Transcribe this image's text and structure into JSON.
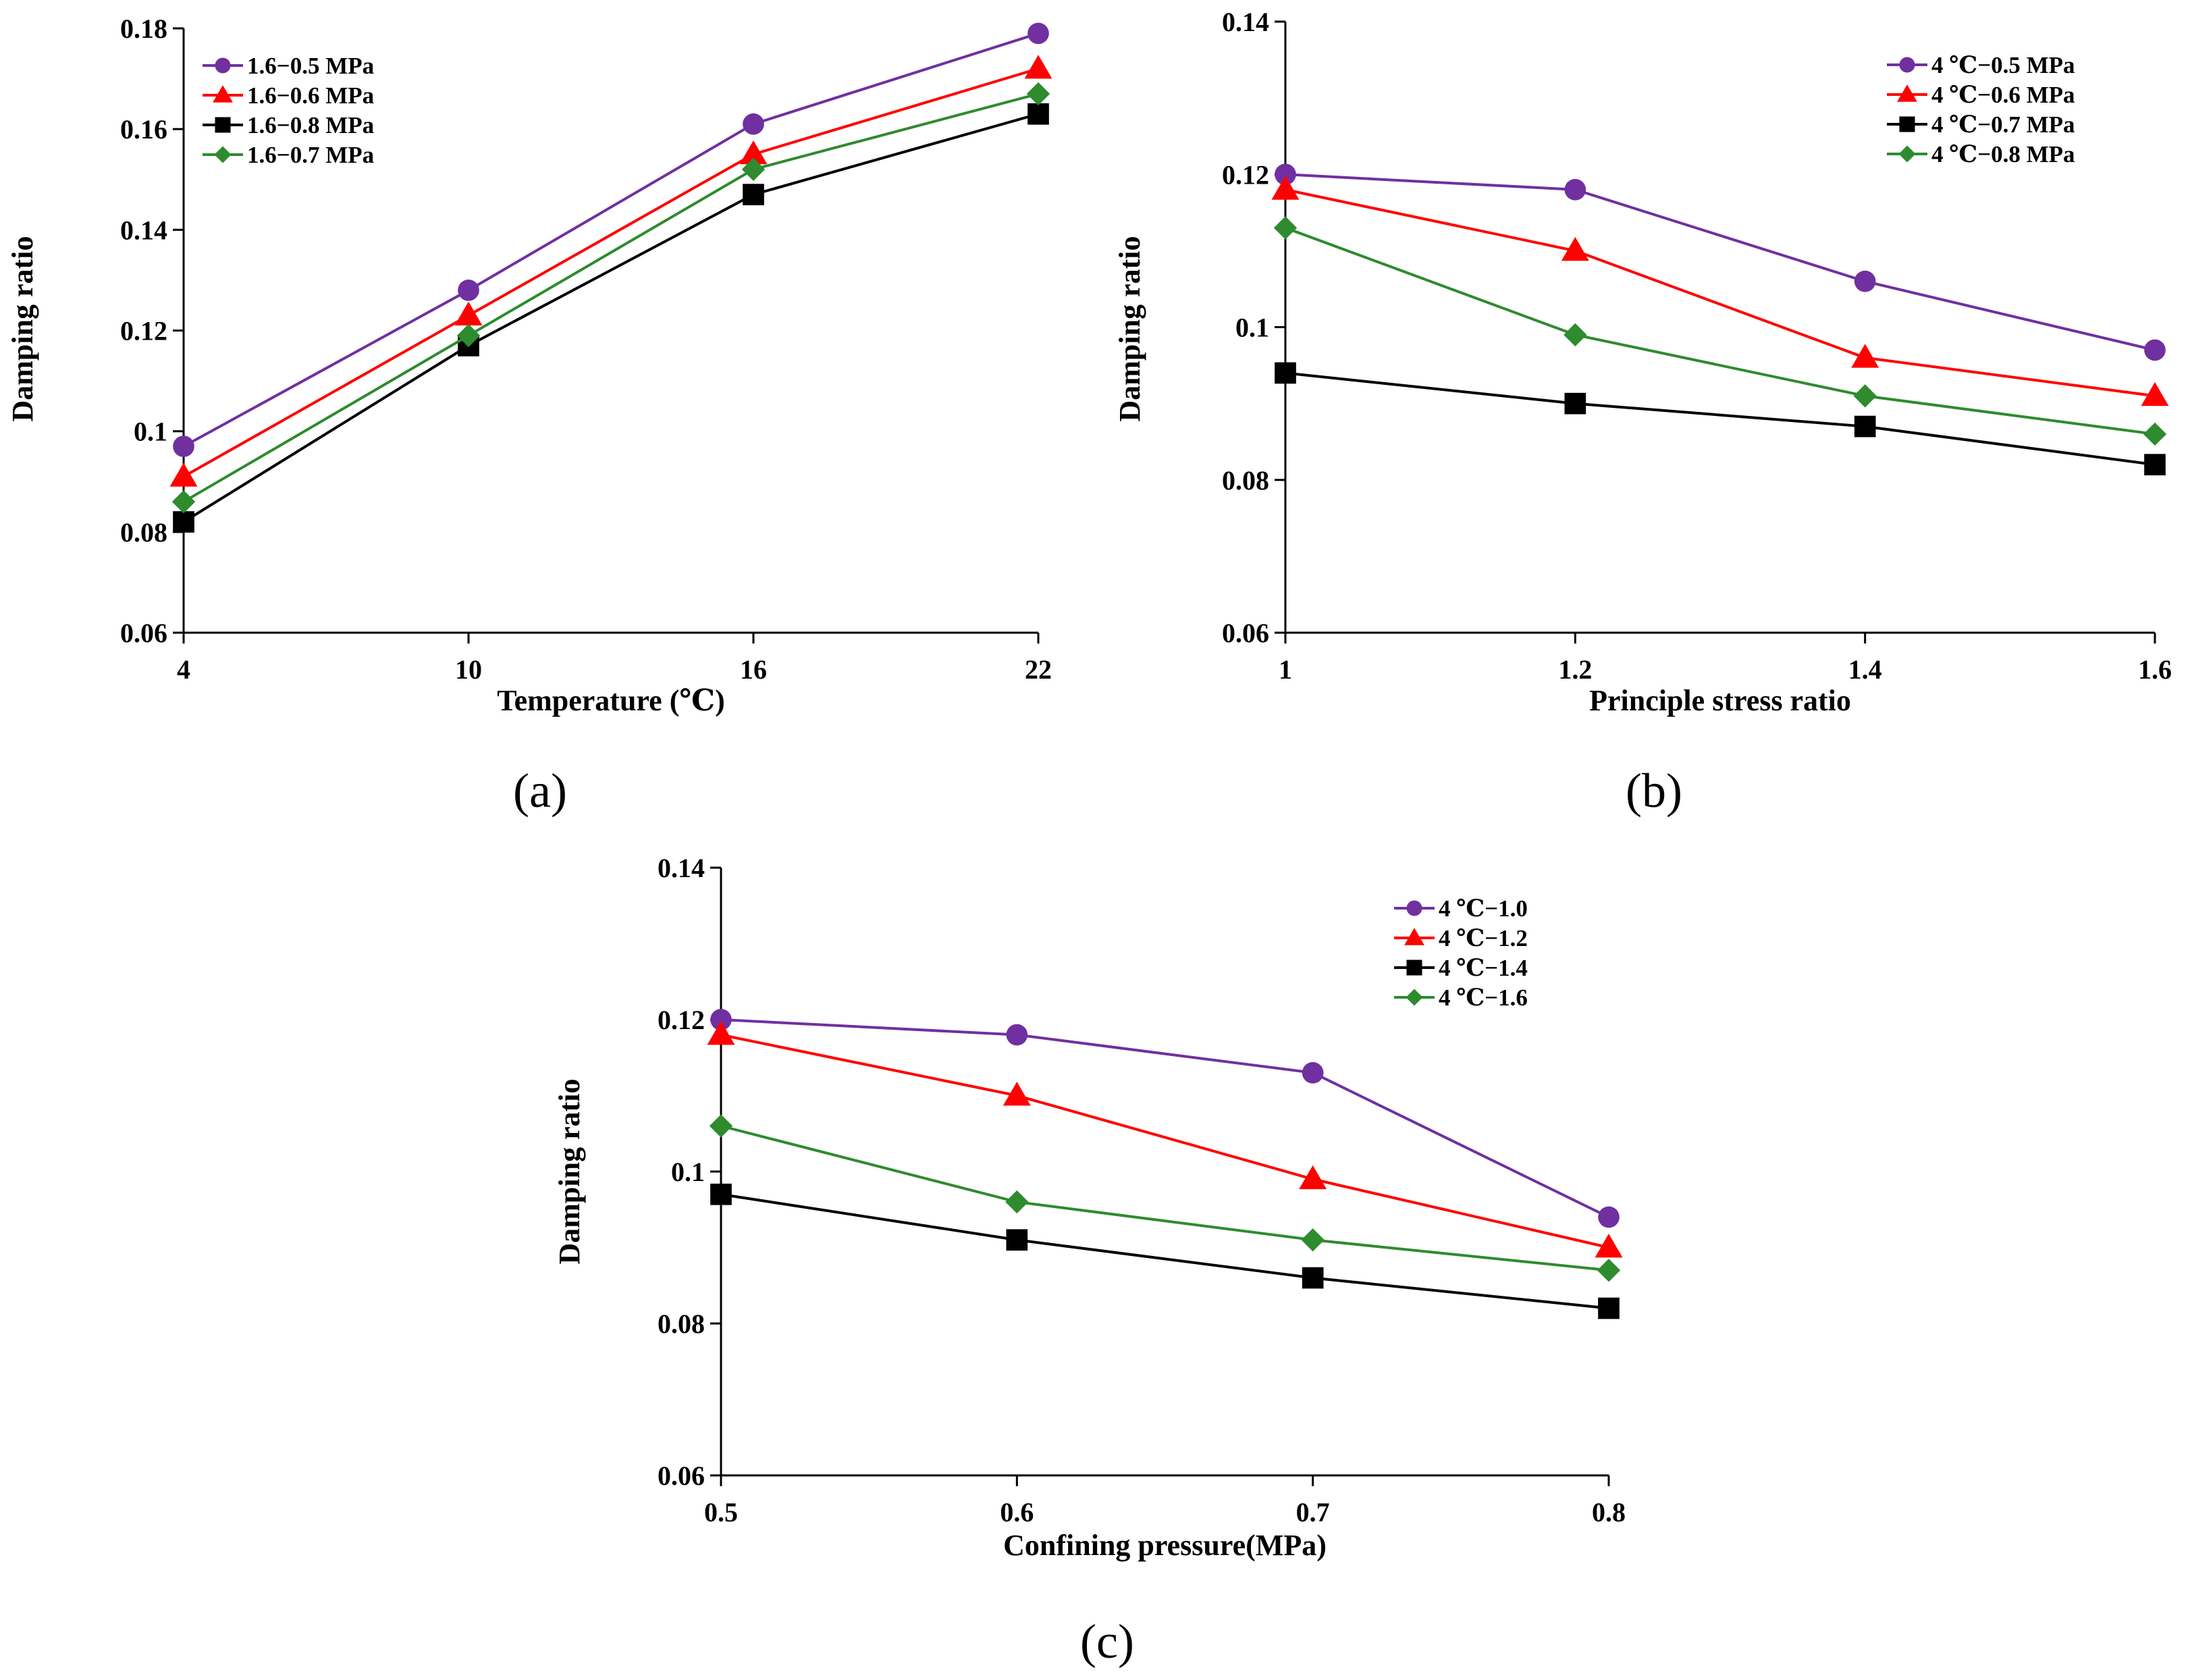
{
  "colors": {
    "series": [
      "#7030A0",
      "#FF0000",
      "#000000",
      "#2E8B2E"
    ],
    "axis": "#000000"
  },
  "chart_data": [
    {
      "type": "line",
      "panel_label": "(a)",
      "xlabel": "Temperature (℃)",
      "ylabel": "Damping ratio",
      "categories": [
        "4",
        "10",
        "16",
        "22"
      ],
      "ylim": [
        0.06,
        0.18
      ],
      "yticks": [
        "0.06",
        "0.08",
        "0.1",
        "0.12",
        "0.14",
        "0.16",
        "0.18"
      ],
      "legend_position": "top-left",
      "series": [
        {
          "name": "1.6−0.5 MPa",
          "marker": "circle",
          "values": [
            0.097,
            0.128,
            0.161,
            0.179
          ]
        },
        {
          "name": "1.6−0.6 MPa",
          "marker": "triangle",
          "values": [
            0.091,
            0.123,
            0.155,
            0.172
          ]
        },
        {
          "name": "1.6−0.8 MPa",
          "marker": "square",
          "values": [
            0.082,
            0.117,
            0.147,
            0.163
          ]
        },
        {
          "name": "1.6−0.7 MPa",
          "marker": "diamond",
          "values": [
            0.086,
            0.119,
            0.152,
            0.167
          ]
        }
      ]
    },
    {
      "type": "line",
      "panel_label": "(b)",
      "xlabel": "Principle stress ratio",
      "ylabel": "Damping ratio",
      "categories": [
        "1",
        "1.2",
        "1.4",
        "1.6"
      ],
      "ylim": [
        0.06,
        0.14
      ],
      "yticks": [
        "0.06",
        "0.08",
        "0.1",
        "0.12",
        "0.14"
      ],
      "legend_position": "top-right",
      "series": [
        {
          "name": "4 ℃−0.5 MPa",
          "marker": "circle",
          "values": [
            0.12,
            0.118,
            0.106,
            0.097
          ]
        },
        {
          "name": "4 ℃−0.6 MPa",
          "marker": "triangle",
          "values": [
            0.118,
            0.11,
            0.096,
            0.091
          ]
        },
        {
          "name": "4 ℃−0.7 MPa",
          "marker": "square",
          "values": [
            0.094,
            0.09,
            0.087,
            0.082
          ]
        },
        {
          "name": "4 ℃−0.8 MPa",
          "marker": "diamond",
          "values": [
            0.113,
            0.099,
            0.091,
            0.086
          ]
        }
      ]
    },
    {
      "type": "line",
      "panel_label": "(c)",
      "xlabel": "Confining pressure(MPa)",
      "ylabel": "Damping ratio",
      "categories": [
        "0.5",
        "0.6",
        "0.7",
        "0.8"
      ],
      "ylim": [
        0.06,
        0.14
      ],
      "yticks": [
        "0.06",
        "0.08",
        "0.1",
        "0.12",
        "0.14"
      ],
      "legend_position": "top-right",
      "series": [
        {
          "name": "4 ℃−1.0",
          "marker": "circle",
          "values": [
            0.12,
            0.118,
            0.113,
            0.094
          ]
        },
        {
          "name": "4 ℃−1.2",
          "marker": "triangle",
          "values": [
            0.118,
            0.11,
            0.099,
            0.09
          ]
        },
        {
          "name": "4 ℃−1.4",
          "marker": "square",
          "values": [
            0.097,
            0.091,
            0.086,
            0.082
          ]
        },
        {
          "name": "4 ℃−1.6",
          "marker": "diamond",
          "values": [
            0.106,
            0.096,
            0.091,
            0.087
          ]
        }
      ]
    }
  ]
}
